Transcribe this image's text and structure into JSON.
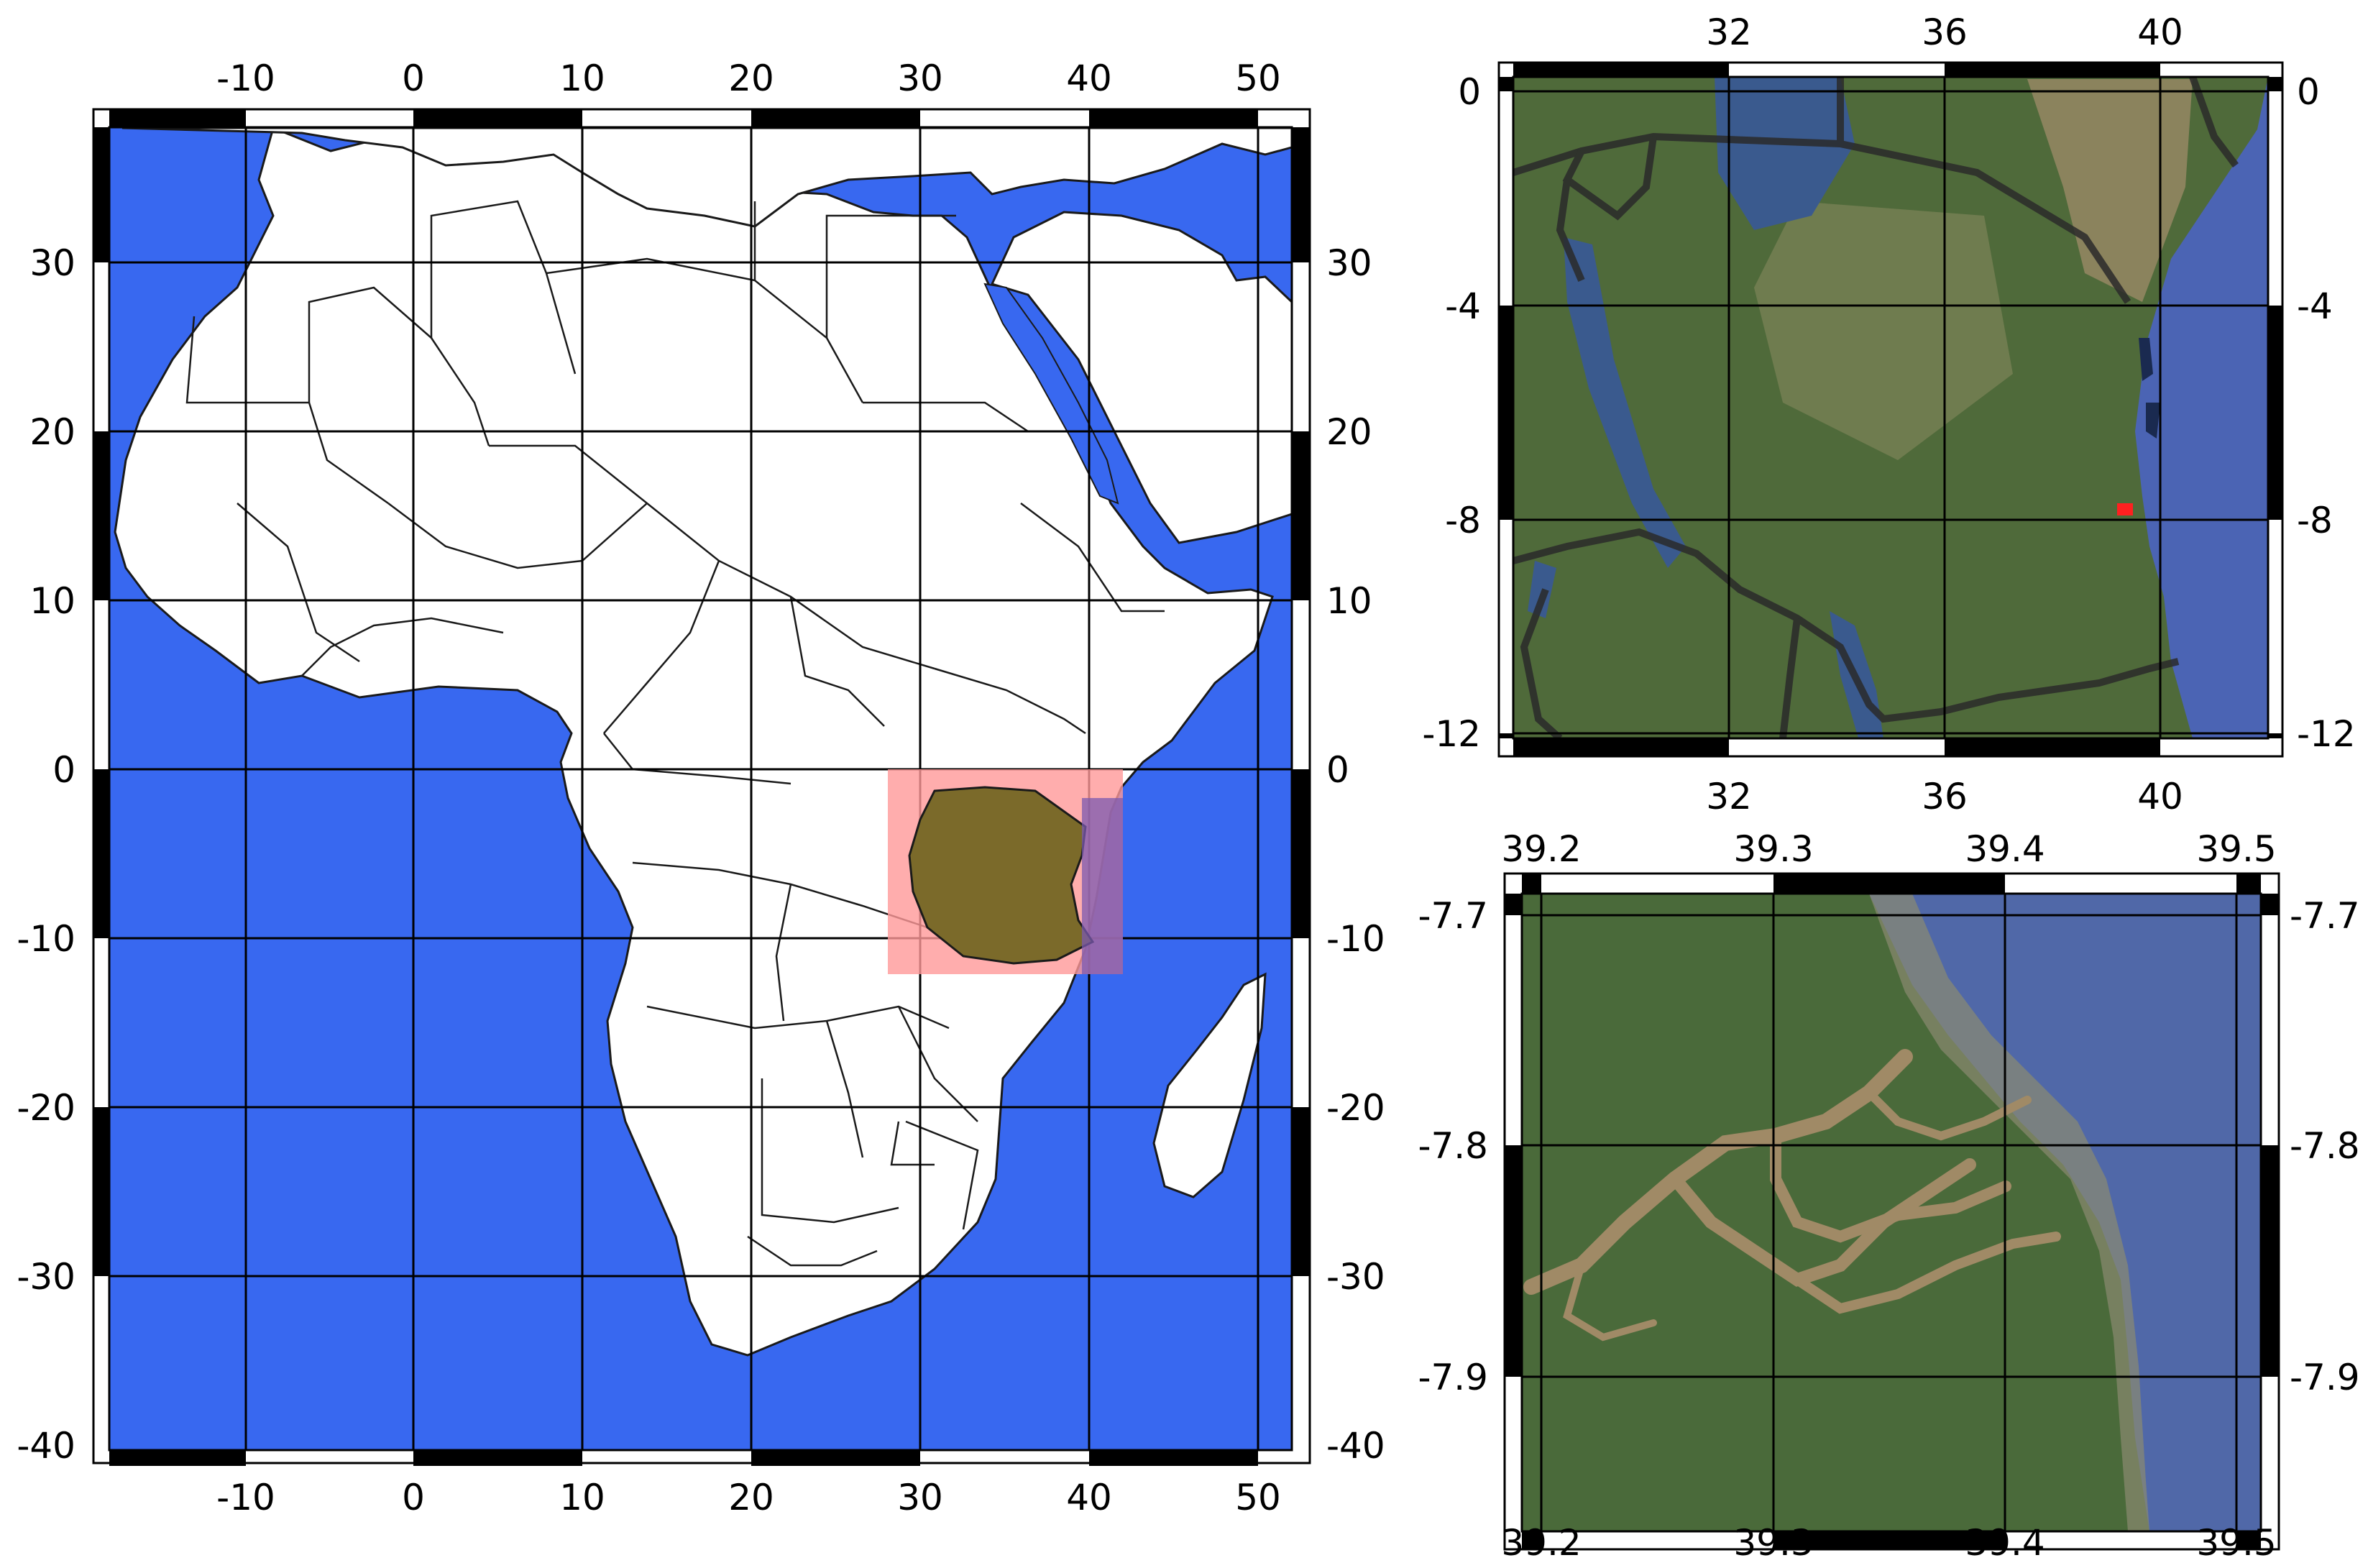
{
  "colors": {
    "ocean": "#3868F0",
    "land": "#FFFFFF",
    "highlight_box": "#FF9999",
    "country_fill": "#7B6A2A",
    "satellite_vegetation": "#4F6A3A",
    "satellite_arid": "#9A8A66",
    "lake_water": "#3A5A8E",
    "sea_overlay": "#4B64B4",
    "border": "#2A2A2A",
    "marker": "#FF2020"
  },
  "main_map": {
    "x_ticks": [
      "-10",
      "0",
      "10",
      "20",
      "30",
      "40",
      "50"
    ],
    "y_ticks_left": [
      "30",
      "20",
      "10",
      "0",
      "-10",
      "-20",
      "-30",
      "-40"
    ],
    "y_ticks_right": [
      "30",
      "20",
      "10",
      "0",
      "-10",
      "-20",
      "-30",
      "-40"
    ]
  },
  "inset_top": {
    "x_ticks": [
      "32",
      "36",
      "40"
    ],
    "y_ticks": [
      "0",
      "-4",
      "-8",
      "-12"
    ]
  },
  "inset_bottom": {
    "x_ticks": [
      "39.2",
      "39.3",
      "39.4",
      "39.5"
    ],
    "y_ticks": [
      "-7.7",
      "-7.8",
      "-7.9"
    ]
  }
}
